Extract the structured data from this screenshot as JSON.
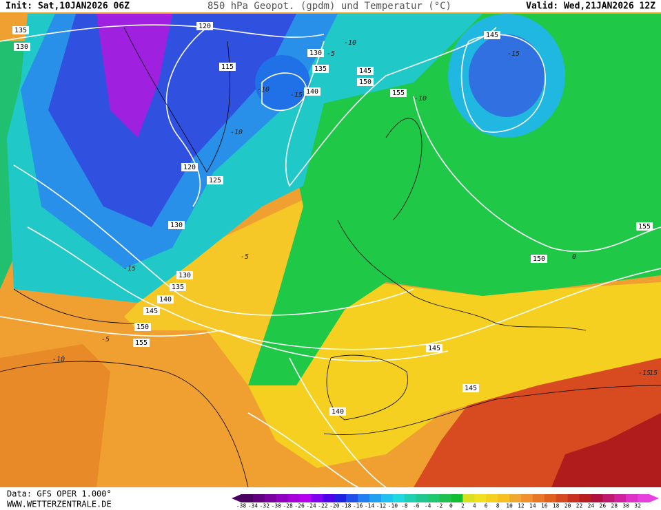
{
  "header": {
    "init": "Init: Sat,10JAN2026 06Z",
    "title": "850 hPa Geopot. (gpdm) und Temperatur (°C)",
    "valid": "Valid: Wed,21JAN2026 12Z"
  },
  "contour_labels": [
    "135",
    "130",
    "120",
    "115",
    "130",
    "135",
    "140",
    "145",
    "150",
    "155",
    "145",
    "120",
    "125",
    "130",
    "130",
    "135",
    "140",
    "145",
    "150",
    "155",
    "145",
    "145",
    "140",
    "150",
    "155",
    "-10",
    "-10",
    "-15",
    "-10",
    "-10",
    "-15",
    "-15",
    "-5",
    "-5",
    "-10",
    "-15",
    "0",
    "15",
    "-5"
  ],
  "legend": {
    "labels": [
      -38,
      -34,
      -32,
      -30,
      -28,
      -26,
      -24,
      -22,
      -20,
      -18,
      -16,
      -14,
      -12,
      -10,
      -8,
      -6,
      -4,
      -2,
      0,
      2,
      4,
      6,
      8,
      10,
      12,
      14,
      16,
      18,
      20,
      22,
      24,
      26,
      28,
      30,
      32
    ]
  },
  "footer": {
    "data": "Data: GFS OPER 1.000°",
    "site": "WWW.WETTERZENTRALE.DE"
  }
}
